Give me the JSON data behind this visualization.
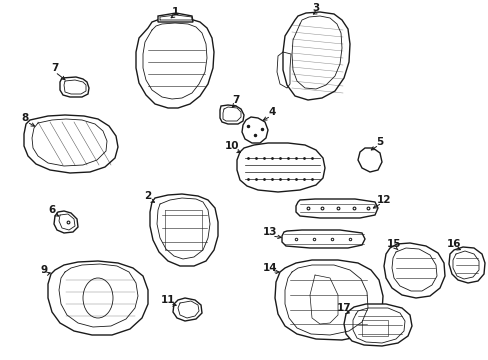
{
  "bg_color": "#ffffff",
  "line_color": "#1a1a1a",
  "figsize": [
    4.89,
    3.6
  ],
  "dpi": 100,
  "label_fontsize": 7.5
}
